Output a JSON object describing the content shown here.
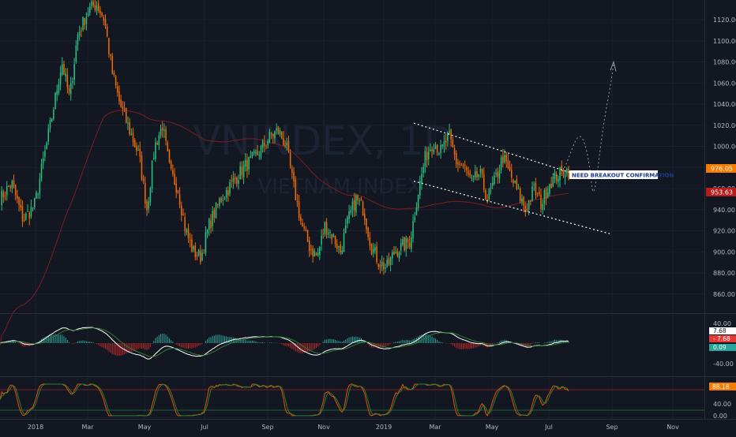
{
  "chart_data": {
    "type": "candlestick",
    "watermark": {
      "symbol": "VNINDEX, 1D",
      "name": "VIETNAM INDEX"
    },
    "annotation": "NEED BREAKOUT CONFIRMATION",
    "price_axis_ticks": [
      860,
      880,
      900,
      920,
      940,
      960,
      980,
      1000,
      1020,
      1040,
      1060,
      1080,
      1100,
      1120
    ],
    "price_range": [
      842,
      1135
    ],
    "last_price_label": "976.05",
    "ma_price_label": "953.63",
    "time_axis_labels": [
      "2018",
      "Mar",
      "May",
      "Jul",
      "Sep",
      "Nov",
      "2019",
      "Mar",
      "May",
      "Jul",
      "Sep",
      "Nov"
    ],
    "price_path": [
      {
        "t": 0,
        "v": 950
      },
      {
        "t": 3,
        "v": 965
      },
      {
        "t": 6,
        "v": 930
      },
      {
        "t": 9,
        "v": 945
      },
      {
        "t": 13,
        "v": 1020
      },
      {
        "t": 16,
        "v": 1080
      },
      {
        "t": 18,
        "v": 1045
      },
      {
        "t": 20,
        "v": 1105
      },
      {
        "t": 23,
        "v": 1130
      },
      {
        "t": 25,
        "v": 1135
      },
      {
        "t": 27,
        "v": 1120
      },
      {
        "t": 29,
        "v": 1070
      },
      {
        "t": 31,
        "v": 1040
      },
      {
        "t": 33,
        "v": 1020
      },
      {
        "t": 36,
        "v": 990
      },
      {
        "t": 38,
        "v": 940
      },
      {
        "t": 40,
        "v": 1000
      },
      {
        "t": 42,
        "v": 1020
      },
      {
        "t": 44,
        "v": 975
      },
      {
        "t": 46,
        "v": 960
      },
      {
        "t": 48,
        "v": 920
      },
      {
        "t": 50,
        "v": 900
      },
      {
        "t": 52,
        "v": 895
      },
      {
        "t": 54,
        "v": 925
      },
      {
        "t": 57,
        "v": 950
      },
      {
        "t": 60,
        "v": 965
      },
      {
        "t": 63,
        "v": 980
      },
      {
        "t": 66,
        "v": 990
      },
      {
        "t": 68,
        "v": 1000
      },
      {
        "t": 70,
        "v": 1010
      },
      {
        "t": 72,
        "v": 1015
      },
      {
        "t": 74,
        "v": 1000
      },
      {
        "t": 76,
        "v": 960
      },
      {
        "t": 78,
        "v": 925
      },
      {
        "t": 80,
        "v": 905
      },
      {
        "t": 82,
        "v": 895
      },
      {
        "t": 84,
        "v": 925
      },
      {
        "t": 86,
        "v": 915
      },
      {
        "t": 88,
        "v": 900
      },
      {
        "t": 90,
        "v": 930
      },
      {
        "t": 92,
        "v": 950
      },
      {
        "t": 94,
        "v": 940
      },
      {
        "t": 96,
        "v": 905
      },
      {
        "t": 98,
        "v": 890
      },
      {
        "t": 100,
        "v": 885
      },
      {
        "t": 102,
        "v": 900
      },
      {
        "t": 104,
        "v": 905
      },
      {
        "t": 106,
        "v": 910
      },
      {
        "t": 108,
        "v": 955
      },
      {
        "t": 110,
        "v": 990
      },
      {
        "t": 112,
        "v": 1005
      },
      {
        "t": 114,
        "v": 995
      },
      {
        "t": 116,
        "v": 1010
      },
      {
        "t": 118,
        "v": 985
      },
      {
        "t": 120,
        "v": 980
      },
      {
        "t": 122,
        "v": 965
      },
      {
        "t": 124,
        "v": 975
      },
      {
        "t": 126,
        "v": 950
      },
      {
        "t": 128,
        "v": 968
      },
      {
        "t": 130,
        "v": 990
      },
      {
        "t": 132,
        "v": 972
      },
      {
        "t": 134,
        "v": 955
      },
      {
        "t": 136,
        "v": 940
      },
      {
        "t": 138,
        "v": 960
      },
      {
        "t": 140,
        "v": 945
      },
      {
        "t": 142,
        "v": 965
      },
      {
        "t": 144,
        "v": 972
      },
      {
        "t": 146,
        "v": 978
      },
      {
        "t": 147,
        "v": 976
      }
    ]
  }
}
